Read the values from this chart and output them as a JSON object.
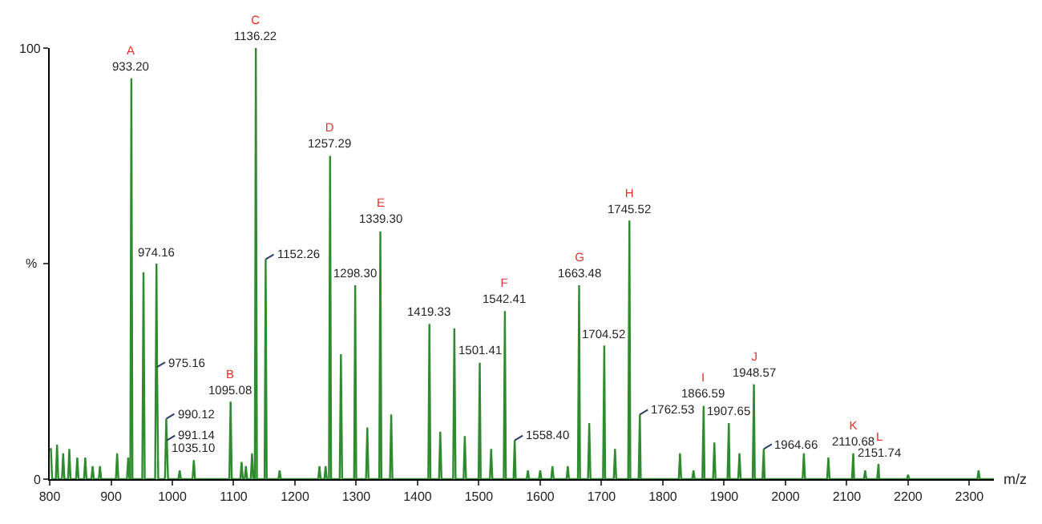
{
  "chart_data": {
    "type": "line",
    "xlabel": "m/z",
    "ylabel": "%",
    "x": [
      800,
      802,
      804,
      810,
      812,
      814,
      820,
      822,
      824,
      830,
      832,
      834,
      843,
      845,
      847,
      856,
      858,
      860,
      868,
      870,
      872,
      880,
      882,
      884,
      908,
      910,
      912,
      926,
      928,
      930,
      931.5,
      933.2,
      935,
      951,
      953,
      955,
      972,
      974.16,
      975.16,
      977,
      988,
      990.12,
      991.14,
      993,
      1010,
      1012,
      1014,
      1033,
      1035.1,
      1037,
      1093,
      1095.08,
      1097,
      1111,
      1113,
      1115,
      1118,
      1120,
      1122,
      1128,
      1130,
      1132,
      1134.5,
      1136.22,
      1138,
      1150.5,
      1152.26,
      1154,
      1173,
      1175,
      1177,
      1238,
      1240,
      1242,
      1248,
      1250,
      1252,
      1255.5,
      1257.29,
      1259,
      1273,
      1275,
      1277,
      1296.5,
      1298.3,
      1300,
      1316,
      1318,
      1320,
      1337.5,
      1339.3,
      1341,
      1355,
      1357,
      1359,
      1417.5,
      1419.33,
      1421,
      1435,
      1437,
      1439,
      1458,
      1460,
      1462,
      1475,
      1477,
      1479,
      1499.5,
      1501.41,
      1503,
      1518,
      1520,
      1522,
      1540.5,
      1542.41,
      1544,
      1556.5,
      1558.4,
      1560,
      1578,
      1580,
      1582,
      1598,
      1600,
      1602,
      1618,
      1620,
      1622,
      1643,
      1645,
      1647,
      1661.5,
      1663.48,
      1665,
      1678,
      1680,
      1682,
      1702.5,
      1704.52,
      1706,
      1720,
      1722,
      1724,
      1743.5,
      1745.52,
      1747,
      1760.5,
      1762.53,
      1764,
      1826,
      1828,
      1830,
      1848,
      1850,
      1852,
      1864.5,
      1866.59,
      1868,
      1882,
      1884,
      1886,
      1905.5,
      1907.65,
      1909,
      1923,
      1925,
      1927,
      1946.5,
      1948.57,
      1950,
      1962.5,
      1964.66,
      1966,
      2028,
      2030,
      2032,
      2068,
      2070,
      2072,
      2108.5,
      2110.68,
      2112,
      2128,
      2130,
      2132,
      2149.5,
      2151.74,
      2153,
      2198,
      2200,
      2202,
      2313,
      2315,
      2317,
      2340
    ],
    "series": [
      {
        "color": "#2e8b2e",
        "values": [
          7,
          7,
          0,
          0,
          8,
          0,
          0,
          6,
          0,
          0,
          7,
          0,
          0,
          5,
          0,
          0,
          5,
          0,
          0,
          3,
          0,
          0,
          3,
          0,
          0,
          6,
          0,
          0,
          5,
          0,
          0,
          93,
          0,
          0,
          48,
          0,
          0,
          50,
          26,
          0,
          0,
          14,
          9,
          0,
          0,
          2,
          0,
          0,
          4.4,
          0,
          0,
          18,
          0,
          0,
          4,
          0,
          0,
          3,
          0,
          0,
          6,
          0,
          0,
          100,
          0,
          0,
          51,
          0,
          0,
          2,
          0,
          0,
          3,
          0,
          0,
          3,
          0,
          0,
          75,
          0,
          0,
          29,
          0,
          0,
          45,
          0,
          0,
          12,
          0,
          0,
          57.5,
          0,
          0,
          15,
          0,
          0,
          36,
          0,
          0,
          11,
          0,
          0,
          35,
          0,
          0,
          10,
          0,
          0,
          27,
          0,
          0,
          7,
          0,
          0,
          39,
          0,
          0,
          9,
          0,
          0,
          2,
          0,
          0,
          2,
          0,
          0,
          3,
          0,
          0,
          3,
          0,
          0,
          45,
          0,
          0,
          13,
          0,
          0,
          31,
          0,
          0,
          7,
          0,
          0,
          60,
          0,
          0,
          15,
          0,
          0,
          6,
          0,
          0,
          2,
          0,
          0,
          17,
          0,
          0,
          8.5,
          0,
          0,
          13,
          0,
          0,
          6,
          0,
          0,
          22,
          0,
          0,
          7,
          0,
          0,
          6,
          0,
          0,
          5,
          0,
          0,
          6,
          0,
          0,
          2,
          0,
          0,
          3.5,
          0,
          0,
          1,
          0,
          0,
          2,
          0,
          0
        ]
      }
    ],
    "xlim": [
      800,
      2340
    ],
    "ylim": [
      0,
      100
    ],
    "xticks": [
      800,
      900,
      1000,
      1100,
      1200,
      1300,
      1400,
      1500,
      1600,
      1700,
      1800,
      1900,
      2000,
      2100,
      2200,
      2300
    ],
    "yticks": [
      0,
      {
        "value": 50,
        "label": null
      },
      100
    ],
    "annotations": [
      {
        "text": "A\n933.20",
        "x": 933.2,
        "y": 93
      },
      {
        "text": "974.16",
        "x": 974.16,
        "y": 50
      },
      {
        "text": "975.16",
        "x": 975.16,
        "y": 26
      },
      {
        "text": "990.12",
        "x": 990.12,
        "y": 14
      },
      {
        "text": "991.14",
        "x": 991.14,
        "y": 9
      },
      {
        "text": "1035.10",
        "x": 1035.1,
        "y": 4.4
      },
      {
        "text": "B\n1095.08",
        "x": 1095.08,
        "y": 18
      },
      {
        "text": "C\n1136.22",
        "x": 1136.22,
        "y": 100
      },
      {
        "text": "1152.26",
        "x": 1152.26,
        "y": 51
      },
      {
        "text": "D\n1257.29",
        "x": 1257.29,
        "y": 75
      },
      {
        "text": "1298.30",
        "x": 1298.3,
        "y": 45
      },
      {
        "text": "E\n1339.30",
        "x": 1339.3,
        "y": 57.5
      },
      {
        "text": "1419.33",
        "x": 1419.33,
        "y": 36
      },
      {
        "text": "1501.41",
        "x": 1501.41,
        "y": 27
      },
      {
        "text": "F\n1542.41",
        "x": 1542.41,
        "y": 39
      },
      {
        "text": "1558.40",
        "x": 1558.4,
        "y": 9
      },
      {
        "text": "G\n1663.48",
        "x": 1663.48,
        "y": 45
      },
      {
        "text": "1704.52",
        "x": 1704.52,
        "y": 31
      },
      {
        "text": "H\n1745.52",
        "x": 1745.52,
        "y": 60
      },
      {
        "text": "1762.53",
        "x": 1762.53,
        "y": 15
      },
      {
        "text": "I\n1866.59",
        "x": 1866.59,
        "y": 17
      },
      {
        "text": "1907.65",
        "x": 1907.65,
        "y": 13
      },
      {
        "text": "J\n1948.57",
        "x": 1948.57,
        "y": 22
      },
      {
        "text": "1964.66",
        "x": 1964.66,
        "y": 7
      },
      {
        "text": "K\n2110.68",
        "x": 2110.68,
        "y": 6
      },
      {
        "text": "L\n2151.74",
        "x": 2151.74,
        "y": 3.5
      }
    ],
    "marker": "none",
    "line_style": "solid"
  }
}
